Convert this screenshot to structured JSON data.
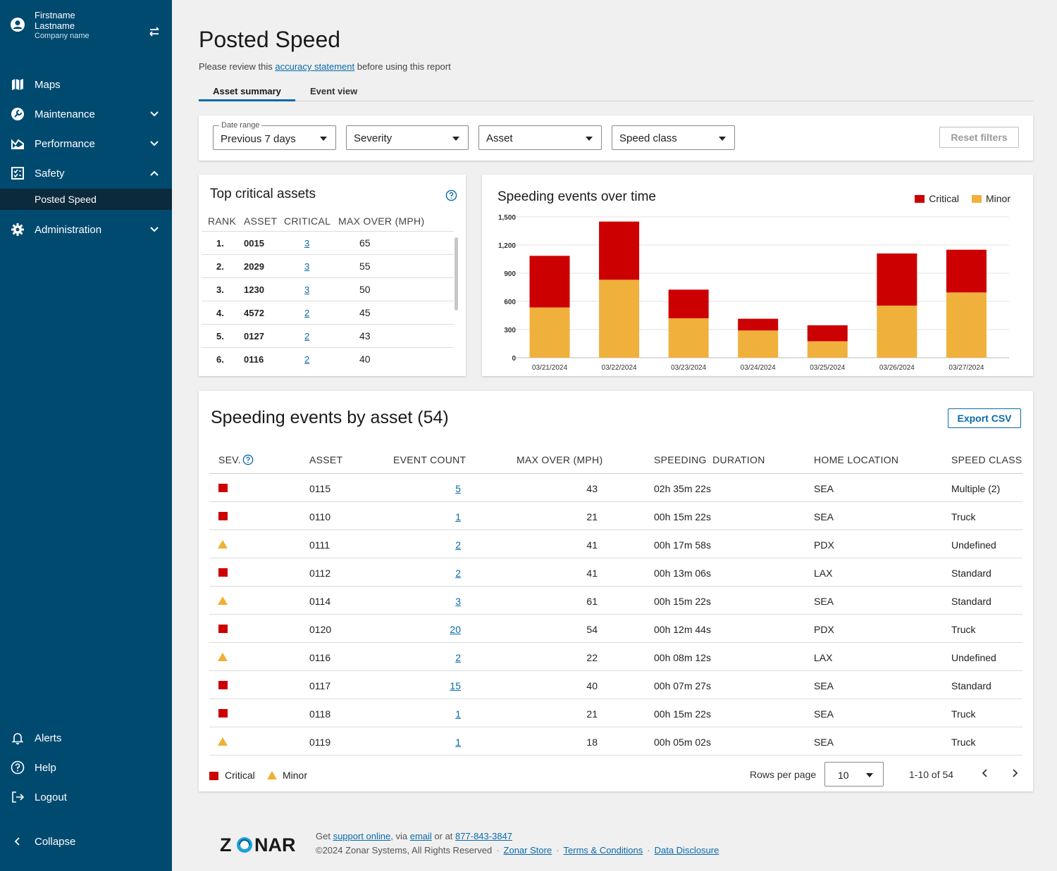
{
  "sidebar": {
    "user": {
      "first": "Firstname",
      "last": "Lastname",
      "company": "Company name"
    },
    "items": [
      {
        "label": "Maps",
        "icon": "map-icon"
      },
      {
        "label": "Maintenance",
        "icon": "wrench-icon"
      },
      {
        "label": "Performance",
        "icon": "chart-area-icon"
      },
      {
        "label": "Safety",
        "icon": "checklist-icon"
      },
      {
        "label": "Administration",
        "icon": "gear-icon"
      }
    ],
    "sub_active": "Posted Speed",
    "bottom": [
      {
        "label": "Alerts",
        "icon": "bell-icon"
      },
      {
        "label": "Help",
        "icon": "help-circle-icon"
      },
      {
        "label": "Logout",
        "icon": "logout-icon"
      },
      {
        "label": "Collapse",
        "icon": "chevron-left-icon"
      }
    ]
  },
  "page": {
    "title": "Posted Speed",
    "subtitle_pre": "Please review this ",
    "subtitle_link": "accuracy statement",
    "subtitle_post": " before using this report",
    "tabs": [
      "Asset summary",
      "Event view"
    ]
  },
  "filters": {
    "date_range_label": "Date range",
    "date_range_value": "Previous 7 days",
    "severity": "Severity",
    "asset": "Asset",
    "speed_class": "Speed class",
    "reset": "Reset filters"
  },
  "top_critical": {
    "title": "Top critical assets",
    "headers": [
      "RANK",
      "ASSET",
      "CRITICAL",
      "MAX OVER (MPH)"
    ],
    "rows": [
      {
        "rank": "1.",
        "asset": "0015",
        "critical": "3",
        "max": "65"
      },
      {
        "rank": "2.",
        "asset": "2029",
        "critical": "3",
        "max": "55"
      },
      {
        "rank": "3.",
        "asset": "1230",
        "critical": "3",
        "max": "50"
      },
      {
        "rank": "4.",
        "asset": "4572",
        "critical": "2",
        "max": "45"
      },
      {
        "rank": "5.",
        "asset": "0127",
        "critical": "2",
        "max": "43"
      },
      {
        "rank": "6.",
        "asset": "0116",
        "critical": "2",
        "max": "40"
      }
    ]
  },
  "chart_data": {
    "type": "bar",
    "stacked": true,
    "title": "Speeding events over time",
    "categories": [
      "03/21/2024",
      "03/22/2024",
      "03/23/2024",
      "03/24/2024",
      "03/25/2024",
      "03/26/2024",
      "03/27/2024"
    ],
    "series": [
      {
        "name": "Minor",
        "color": "#f0b03c",
        "values": [
          535,
          830,
          420,
          290,
          175,
          555,
          695
        ]
      },
      {
        "name": "Critical",
        "color": "#cc0000",
        "values": [
          550,
          620,
          305,
          125,
          170,
          555,
          455
        ]
      }
    ],
    "yticks": [
      "0",
      "300",
      "600",
      "900",
      "1,200",
      "1,500"
    ],
    "ylim": [
      0,
      1500
    ],
    "grid": true,
    "legend": "top-right"
  },
  "events": {
    "title": "Speeding events by asset (54)",
    "export": "Export CSV",
    "headers": [
      "SEV.",
      "ASSET",
      "EVENT COUNT",
      "MAX OVER (MPH)",
      "SPEEDING  DURATION",
      "HOME LOCATION",
      "SPEED CLASS"
    ],
    "rows": [
      {
        "sev": "critical",
        "asset": "0115",
        "count": "5",
        "max": "43",
        "duration": "02h 35m 22s",
        "home": "SEA",
        "class": "Multiple (2)"
      },
      {
        "sev": "critical",
        "asset": "0110",
        "count": "1",
        "max": "21",
        "duration": "00h 15m 22s",
        "home": "SEA",
        "class": "Truck"
      },
      {
        "sev": "minor",
        "asset": "0111",
        "count": "2",
        "max": "41",
        "duration": "00h 17m 58s",
        "home": "PDX",
        "class": "Undefined"
      },
      {
        "sev": "critical",
        "asset": "0112",
        "count": "2",
        "max": "41",
        "duration": "00h 13m 06s",
        "home": "LAX",
        "class": "Standard"
      },
      {
        "sev": "minor",
        "asset": "0114",
        "count": "3",
        "max": "61",
        "duration": "00h 15m 22s",
        "home": "SEA",
        "class": "Standard"
      },
      {
        "sev": "critical",
        "asset": "0120",
        "count": "20",
        "max": "54",
        "duration": "00h 12m 44s",
        "home": "PDX",
        "class": "Truck"
      },
      {
        "sev": "minor",
        "asset": "0116",
        "count": "2",
        "max": "22",
        "duration": "00h 08m 12s",
        "home": "LAX",
        "class": "Undefined"
      },
      {
        "sev": "critical",
        "asset": "0117",
        "count": "15",
        "max": "40",
        "duration": "00h 07m 27s",
        "home": "SEA",
        "class": "Standard"
      },
      {
        "sev": "critical",
        "asset": "0118",
        "count": "1",
        "max": "21",
        "duration": "00h 15m 22s",
        "home": "SEA",
        "class": "Truck"
      },
      {
        "sev": "minor",
        "asset": "0119",
        "count": "1",
        "max": "18",
        "duration": "00h 05m 02s",
        "home": "SEA",
        "class": "Truck"
      }
    ],
    "legend": {
      "critical": "Critical",
      "minor": "Minor"
    },
    "rows_per_page_label": "Rows per page",
    "rows_per_page": "10",
    "page_count": "1-10 of 54"
  },
  "colors": {
    "sidebar": "#004a70",
    "critical": "#cc0000",
    "minor": "#f0b035",
    "link": "#0a6aa8"
  },
  "footer": {
    "get": "Get ",
    "support": "support online",
    "via": ", via ",
    "email": "email",
    "or_at": " or at ",
    "phone": "877-843-3847",
    "copyright": "©2024 Zonar Systems, All Rights Reserved",
    "store": "Zonar Store",
    "terms": "Terms & Conditions",
    "disclosure": "Data Disclosure",
    "logo_text": "ZONAR"
  }
}
